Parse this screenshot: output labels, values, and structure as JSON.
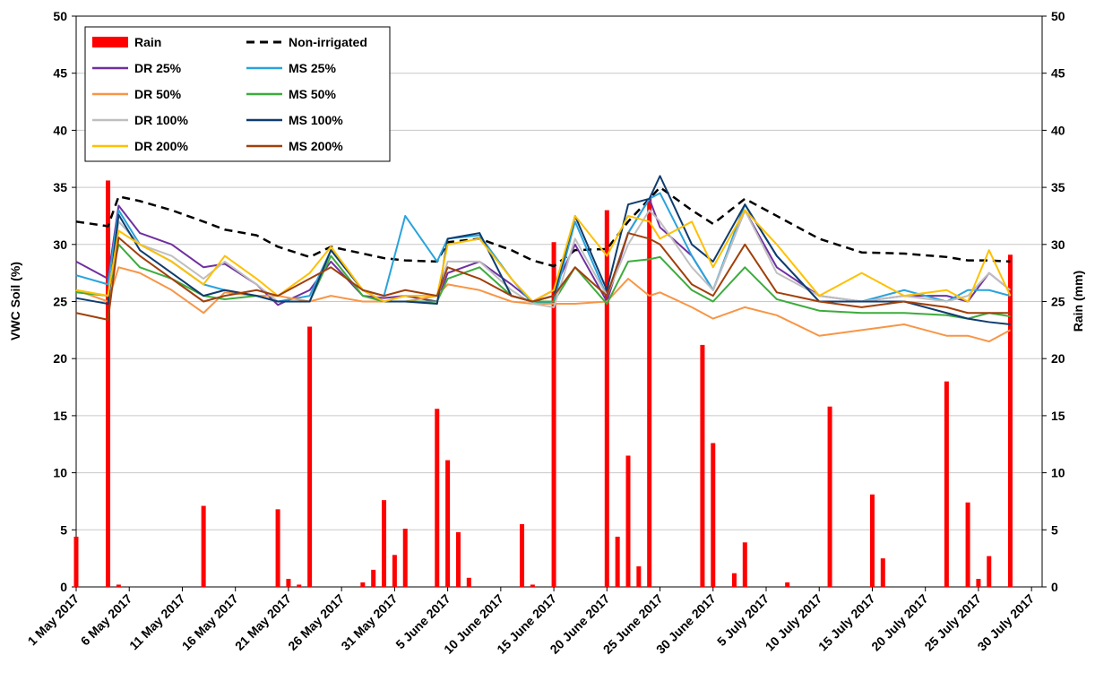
{
  "chart_data": {
    "type": "bar_line",
    "y_label": "VWC Soil (%)",
    "y2_label": "Rain (mm)",
    "xlim": [
      "2017-05-01",
      "2017-07-31"
    ],
    "xticks": [
      {
        "value": "2017-05-01",
        "label": "1 May 2017"
      },
      {
        "value": "2017-05-06",
        "label": "6 May 2017"
      },
      {
        "value": "2017-05-11",
        "label": "11 May 2017"
      },
      {
        "value": "2017-05-16",
        "label": "16 May 2017"
      },
      {
        "value": "2017-05-21",
        "label": "21 May 2017"
      },
      {
        "value": "2017-05-26",
        "label": "26 May 2017"
      },
      {
        "value": "2017-05-31",
        "label": "31 May 2017"
      },
      {
        "value": "2017-06-05",
        "label": "5 June 2017"
      },
      {
        "value": "2017-06-10",
        "label": "10 June 2017"
      },
      {
        "value": "2017-06-15",
        "label": "15 June 2017"
      },
      {
        "value": "2017-06-20",
        "label": "20 June 2017"
      },
      {
        "value": "2017-06-25",
        "label": "25 June 2017"
      },
      {
        "value": "2017-06-30",
        "label": "30 June 2017"
      },
      {
        "value": "2017-07-05",
        "label": "5 July 2017"
      },
      {
        "value": "2017-07-10",
        "label": "10 July 2017"
      },
      {
        "value": "2017-07-15",
        "label": "15 July 2017"
      },
      {
        "value": "2017-07-20",
        "label": "20 July 2017"
      },
      {
        "value": "2017-07-25",
        "label": "25 July 2017"
      },
      {
        "value": "2017-07-30",
        "label": "30 July 2017"
      }
    ],
    "ylim": [
      0,
      50
    ],
    "yticks": [
      0,
      5,
      10,
      15,
      20,
      25,
      30,
      35,
      40,
      45,
      50
    ],
    "y2lim": [
      0,
      50
    ],
    "y2ticks": [
      0,
      5,
      10,
      15,
      20,
      25,
      30,
      35,
      40,
      45,
      50
    ],
    "grid": true,
    "legend": "upper left",
    "line_x": [
      "2017-05-01",
      "2017-05-04",
      "2017-05-05",
      "2017-05-07",
      "2017-05-10",
      "2017-05-13",
      "2017-05-15",
      "2017-05-18",
      "2017-05-20",
      "2017-05-23",
      "2017-05-25",
      "2017-05-28",
      "2017-05-30",
      "2017-06-01",
      "2017-06-04",
      "2017-06-05",
      "2017-06-08",
      "2017-06-11",
      "2017-06-13",
      "2017-06-15",
      "2017-06-17",
      "2017-06-20",
      "2017-06-22",
      "2017-06-24",
      "2017-06-25",
      "2017-06-28",
      "2017-06-30",
      "2017-07-03",
      "2017-07-06",
      "2017-07-10",
      "2017-07-14",
      "2017-07-18",
      "2017-07-22",
      "2017-07-24",
      "2017-07-26",
      "2017-07-28"
    ],
    "series": [
      {
        "name": "Rain",
        "type": "bar",
        "axis": "y2",
        "color": "#ff0000",
        "x": [
          "2017-05-01",
          "2017-05-04",
          "2017-05-05",
          "2017-05-13",
          "2017-05-20",
          "2017-05-21",
          "2017-05-22",
          "2017-05-23",
          "2017-05-28",
          "2017-05-29",
          "2017-05-30",
          "2017-05-31",
          "2017-06-01",
          "2017-06-04",
          "2017-06-05",
          "2017-06-06",
          "2017-06-07",
          "2017-06-12",
          "2017-06-13",
          "2017-06-15",
          "2017-06-20",
          "2017-06-21",
          "2017-06-22",
          "2017-06-23",
          "2017-06-24",
          "2017-06-29",
          "2017-06-30",
          "2017-07-02",
          "2017-07-03",
          "2017-07-07",
          "2017-07-11",
          "2017-07-15",
          "2017-07-16",
          "2017-07-22",
          "2017-07-24",
          "2017-07-25",
          "2017-07-26",
          "2017-07-28"
        ],
        "values": [
          4.4,
          35.6,
          0.2,
          7.1,
          6.8,
          0.7,
          0.2,
          22.8,
          0.4,
          1.5,
          7.6,
          2.8,
          5.1,
          15.6,
          11.1,
          4.8,
          0.8,
          5.5,
          0.2,
          30.2,
          33,
          4.4,
          11.5,
          1.8,
          34,
          21.2,
          12.6,
          1.2,
          3.9,
          0.4,
          15.8,
          8.1,
          2.5,
          18,
          7.4,
          0.7,
          2.7,
          29.1
        ]
      },
      {
        "name": "Non-irrigated",
        "type": "line",
        "dash": true,
        "color": "#000000",
        "values": [
          32,
          31.6,
          34.2,
          33.8,
          33,
          32,
          31.3,
          30.8,
          29.8,
          28.9,
          29.8,
          29.2,
          28.8,
          28.6,
          28.5,
          30.2,
          30.5,
          29.5,
          28.6,
          28.1,
          29.5,
          29.6,
          32,
          34,
          35,
          33,
          31.8,
          34,
          32.5,
          30.5,
          29.3,
          29.2,
          28.9,
          28.6,
          28.6,
          28.5
        ]
      },
      {
        "name": "DR 25%",
        "type": "line",
        "color": "#7030a0",
        "values": [
          28.5,
          27,
          33.4,
          31,
          30,
          28,
          28.3,
          26.5,
          24.7,
          26,
          28.5,
          25.5,
          25.3,
          25.5,
          25,
          27.5,
          28.5,
          26.5,
          25,
          26,
          30,
          25,
          31,
          34,
          31.5,
          29,
          26,
          33,
          28,
          25.5,
          25,
          25.5,
          25.5,
          25,
          27.5,
          26
        ]
      },
      {
        "name": "MS 25%",
        "type": "line",
        "color": "#29a3dc",
        "values": [
          27.3,
          26.5,
          33,
          30,
          28.5,
          26.5,
          26,
          25.5,
          25,
          25.5,
          29.5,
          26,
          25.5,
          32.5,
          28.5,
          30.5,
          30.8,
          27,
          24.8,
          25,
          32,
          25.5,
          31,
          34,
          34.5,
          29,
          26,
          33.5,
          29,
          25,
          25,
          26,
          25,
          26,
          26,
          25.5
        ]
      },
      {
        "name": "DR 50%",
        "type": "line",
        "color": "#f79646",
        "values": [
          26,
          25,
          28,
          27.5,
          26,
          24,
          25.8,
          25.5,
          25.5,
          25,
          25.5,
          25,
          25,
          25,
          25.5,
          26.5,
          26,
          25,
          24.8,
          24.8,
          24.8,
          25,
          27,
          25.5,
          25.8,
          24.5,
          23.5,
          24.5,
          23.8,
          22,
          22.5,
          23,
          22,
          22,
          21.5,
          22.5
        ]
      },
      {
        "name": "MS 50%",
        "type": "line",
        "color": "#3cac3c",
        "values": [
          25.8,
          25.5,
          30,
          28,
          27,
          25.5,
          25.2,
          25.5,
          25,
          25,
          29,
          25.5,
          25,
          25,
          25,
          27,
          28,
          25.5,
          25,
          25,
          28,
          24.8,
          28.5,
          28.7,
          28.9,
          26,
          25,
          28,
          25.2,
          24.2,
          24,
          24,
          23.8,
          23.5,
          24,
          23.7
        ]
      },
      {
        "name": "DR 100%",
        "type": "line",
        "color": "#bfbfbf",
        "values": [
          26,
          25.5,
          32,
          30,
          29,
          27,
          28.5,
          26.5,
          25,
          25,
          29.5,
          26,
          25,
          25.5,
          25.5,
          28.5,
          28.5,
          26,
          24.8,
          24.5,
          30.5,
          25.5,
          30,
          33,
          32,
          28,
          26,
          33,
          27.5,
          25.5,
          25,
          25.5,
          25,
          25.5,
          27.5,
          26
        ]
      },
      {
        "name": "MS 100%",
        "type": "line",
        "color": "#0f3c6e",
        "values": [
          25.3,
          24.8,
          32.6,
          29.5,
          27.5,
          25.5,
          26,
          25.5,
          25,
          25,
          29.5,
          26,
          25,
          25,
          24.8,
          30.5,
          31,
          25.5,
          25,
          25.5,
          32.5,
          26,
          33.5,
          34,
          36,
          30,
          28.5,
          33.5,
          29,
          25,
          25,
          25,
          24,
          23.5,
          23.2,
          23
        ]
      },
      {
        "name": "DR 200%",
        "type": "line",
        "color": "#ffc000",
        "values": [
          26,
          25.5,
          31.2,
          30,
          28.5,
          26.5,
          29,
          27,
          25.5,
          27.5,
          29.8,
          26,
          25,
          25.5,
          25.5,
          30,
          30.5,
          27,
          25,
          26,
          32.5,
          29,
          32.5,
          32,
          30.5,
          32,
          28,
          33,
          30,
          25.5,
          27.5,
          25.5,
          26,
          25,
          29.5,
          25.5
        ]
      },
      {
        "name": "MS 200%",
        "type": "line",
        "color": "#a0400a",
        "values": [
          24,
          23.4,
          30.6,
          29,
          27,
          25,
          25.5,
          26,
          25.5,
          27,
          28,
          26,
          25.5,
          26,
          25.5,
          28,
          27,
          25.5,
          25,
          25.5,
          28,
          25.5,
          31,
          30.5,
          30,
          26.5,
          25.5,
          30,
          25.8,
          25,
          24.5,
          25,
          24.5,
          24,
          24,
          24
        ]
      }
    ]
  }
}
